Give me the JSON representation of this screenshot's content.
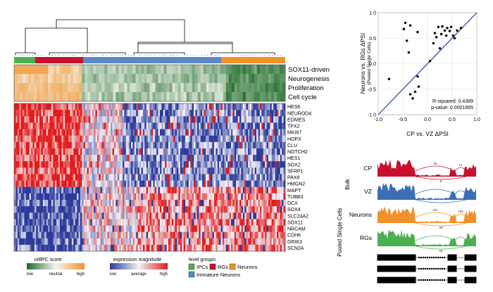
{
  "heatmap_panel": {
    "annotation_labels": [
      "SOX11-driven",
      "Neurogenesis",
      "Proliferation",
      "Cell cycle"
    ],
    "genes": [
      "HES6",
      "NEUROD4",
      "EOMES",
      "TPX2",
      "MKI67",
      "HOPX",
      "CLU",
      "NOTCH2",
      "HES1",
      "SOX2",
      "SFRP1",
      "PAX6",
      "HMGN2",
      "MAPT",
      "TUBB3",
      "DCX",
      "SOX4",
      "SLC24A2",
      "SOX11",
      "NRCAM",
      "CDH6",
      "GRIK3",
      "SCN2A"
    ],
    "group_colors": {
      "IPCs": "#4caf50",
      "RGs": "#c8102e",
      "Immature Neurons": "#5b87c8",
      "Neurons": "#f0922b"
    }
  },
  "legends": {
    "cellpc": {
      "title": "cellPC score",
      "low": "low",
      "mid": "neutral",
      "high": "high"
    },
    "expression": {
      "title": "expression magnitude",
      "low": "low",
      "mid": "average",
      "high": "high"
    },
    "groups": {
      "title": "level groups:",
      "items": [
        "IPCs",
        "RGs",
        "Neurons",
        "Immature Neurons"
      ]
    }
  },
  "chart_data": {
    "type": "scatter",
    "xlabel": "CP vs. VZ ΔPSI",
    "ylabel": "Neurons vs. RGs ΔPSI",
    "ylabel_sub": "(Pooled Single Cells)",
    "xlim": [
      -1.0,
      1.0
    ],
    "ylim": [
      -1.0,
      1.0
    ],
    "xticks": [
      "-1.0",
      "-0.5",
      "0.0",
      "0.5",
      "1.0"
    ],
    "yticks": [
      "1.0",
      "0.5",
      "0.0",
      "-0.5",
      "-1.0"
    ],
    "grid": true,
    "points": [
      [
        -0.78,
        -0.3
      ],
      [
        -0.45,
        0.8
      ],
      [
        -0.48,
        0.68
      ],
      [
        -0.42,
        0.45
      ],
      [
        -0.38,
        0.22
      ],
      [
        -0.35,
        0.75
      ],
      [
        -0.2,
        0.62
      ],
      [
        -0.2,
        -0.25
      ],
      [
        -0.18,
        -0.45
      ],
      [
        -0.25,
        -0.55
      ],
      [
        -0.35,
        -0.6
      ],
      [
        -0.3,
        -0.68
      ],
      [
        0.12,
        0.4
      ],
      [
        0.15,
        0.6
      ],
      [
        0.18,
        0.52
      ],
      [
        0.22,
        0.72
      ],
      [
        0.25,
        0.3
      ],
      [
        0.28,
        0.58
      ],
      [
        0.3,
        0.73
      ],
      [
        0.35,
        0.65
      ],
      [
        0.38,
        0.55
      ],
      [
        0.4,
        0.7
      ],
      [
        0.45,
        0.64
      ],
      [
        0.48,
        0.72
      ],
      [
        0.52,
        0.55
      ],
      [
        0.55,
        0.5
      ],
      [
        0.6,
        0.65
      ],
      [
        0.68,
        0.7
      ],
      [
        0.05,
        0.05
      ]
    ],
    "fit_line": [
      [
        -1.0,
        -1.0
      ],
      [
        1.0,
        1.0
      ]
    ],
    "annotations": [
      "R-squared: 0.4389",
      "p-value: 0.0001665"
    ]
  },
  "sashimi": {
    "group_bulk": "Bulk",
    "group_pooled": "Pooled Single Cells",
    "tracks": [
      {
        "label": "CP",
        "color": "#c8102e",
        "counts": [
          "25",
          "14",
          "8"
        ]
      },
      {
        "label": "VZ",
        "color": "#3a6fb5",
        "counts": [
          "",
          "",
          ""
        ]
      },
      {
        "label": "Neurons",
        "color": "#f0922b",
        "counts": [
          "237",
          "105",
          "55"
        ]
      },
      {
        "label": "RGs",
        "color": "#4caf50",
        "counts": [
          "",
          "",
          "60"
        ]
      }
    ]
  }
}
